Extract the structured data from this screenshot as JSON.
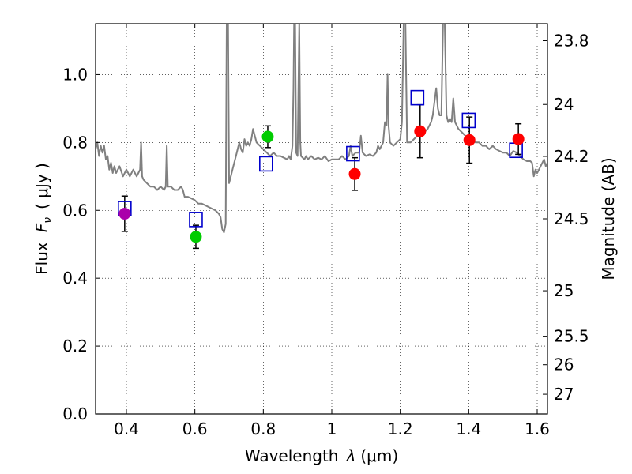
{
  "chart_data": {
    "type": "scatter",
    "xlabel": "Wavelength",
    "xlabel_symbol": "λ",
    "xlabel_unit": "(μm)",
    "ylabel": "Flux",
    "ylabel_symbol": "F",
    "ylabel_subscript": "ν",
    "ylabel_unit": "( μJy )",
    "y2label": "Magnitude (AB)",
    "xlim": [
      0.31,
      1.63
    ],
    "ylim": [
      0.0,
      1.15
    ],
    "grid": true,
    "x_ticks": [
      {
        "value": 0.4,
        "label": "0.4"
      },
      {
        "value": 0.6,
        "label": "0.6"
      },
      {
        "value": 0.8,
        "label": "0.8"
      },
      {
        "value": 1.0,
        "label": "1"
      },
      {
        "value": 1.2,
        "label": "1.2"
      },
      {
        "value": 1.4,
        "label": "1.4"
      },
      {
        "value": 1.6,
        "label": "1.6"
      }
    ],
    "y_ticks": [
      {
        "value": 0.0,
        "label": "0.0"
      },
      {
        "value": 0.2,
        "label": "0.2"
      },
      {
        "value": 0.4,
        "label": "0.4"
      },
      {
        "value": 0.6,
        "label": "0.6"
      },
      {
        "value": 0.8,
        "label": "0.8"
      },
      {
        "value": 1.0,
        "label": "1.0"
      }
    ],
    "y2_ticks": [
      {
        "flux": 1.1,
        "label": "23.8"
      },
      {
        "flux": 0.912,
        "label": "24"
      },
      {
        "flux": 0.759,
        "label": "24.2"
      },
      {
        "flux": 0.575,
        "label": "24.5"
      },
      {
        "flux": 0.363,
        "label": "25"
      },
      {
        "flux": 0.229,
        "label": "25.5"
      },
      {
        "flux": 0.145,
        "label": "26"
      },
      {
        "flux": 0.058,
        "label": "27"
      }
    ],
    "colors": {
      "sed": "#808080",
      "model": "#0000cc",
      "errorbar": "#000000",
      "purple": "#aa00aa",
      "green": "#00cc00",
      "red": "#ff0000"
    },
    "model_points": [
      {
        "x": 0.395,
        "y": 0.605
      },
      {
        "x": 0.603,
        "y": 0.573
      },
      {
        "x": 0.808,
        "y": 0.737
      },
      {
        "x": 1.062,
        "y": 0.767
      },
      {
        "x": 1.25,
        "y": 0.932
      },
      {
        "x": 1.4,
        "y": 0.865
      },
      {
        "x": 1.538,
        "y": 0.777
      }
    ],
    "observed_points": [
      {
        "x": 0.395,
        "y": 0.59,
        "yerr": 0.052,
        "color": "purple"
      },
      {
        "x": 0.603,
        "y": 0.522,
        "yerr": 0.034,
        "color": "green"
      },
      {
        "x": 0.813,
        "y": 0.817,
        "yerr": 0.032,
        "color": "green"
      },
      {
        "x": 1.067,
        "y": 0.707,
        "yerr": 0.048,
        "color": "red"
      },
      {
        "x": 1.258,
        "y": 0.833,
        "yerr": 0.078,
        "color": "red"
      },
      {
        "x": 1.402,
        "y": 0.807,
        "yerr": 0.068,
        "color": "red"
      },
      {
        "x": 1.545,
        "y": 0.81,
        "yerr": 0.045,
        "color": "red"
      }
    ],
    "sed_curve": [
      [
        0.31,
        0.78
      ],
      [
        0.315,
        0.8
      ],
      [
        0.32,
        0.76
      ],
      [
        0.325,
        0.79
      ],
      [
        0.33,
        0.77
      ],
      [
        0.335,
        0.79
      ],
      [
        0.34,
        0.75
      ],
      [
        0.345,
        0.76
      ],
      [
        0.35,
        0.72
      ],
      [
        0.355,
        0.74
      ],
      [
        0.36,
        0.71
      ],
      [
        0.365,
        0.73
      ],
      [
        0.37,
        0.71
      ],
      [
        0.38,
        0.73
      ],
      [
        0.39,
        0.7
      ],
      [
        0.4,
        0.72
      ],
      [
        0.41,
        0.7
      ],
      [
        0.42,
        0.72
      ],
      [
        0.425,
        0.71
      ],
      [
        0.43,
        0.7
      ],
      [
        0.435,
        0.71
      ],
      [
        0.44,
        0.72
      ],
      [
        0.443,
        0.8
      ],
      [
        0.446,
        0.7
      ],
      [
        0.45,
        0.69
      ],
      [
        0.46,
        0.68
      ],
      [
        0.47,
        0.67
      ],
      [
        0.48,
        0.67
      ],
      [
        0.49,
        0.66
      ],
      [
        0.5,
        0.67
      ],
      [
        0.51,
        0.66
      ],
      [
        0.515,
        0.67
      ],
      [
        0.518,
        0.79
      ],
      [
        0.521,
        0.67
      ],
      [
        0.53,
        0.67
      ],
      [
        0.54,
        0.66
      ],
      [
        0.55,
        0.66
      ],
      [
        0.56,
        0.67
      ],
      [
        0.565,
        0.66
      ],
      [
        0.57,
        0.64
      ],
      [
        0.58,
        0.64
      ],
      [
        0.59,
        0.635
      ],
      [
        0.6,
        0.63
      ],
      [
        0.61,
        0.62
      ],
      [
        0.62,
        0.62
      ],
      [
        0.63,
        0.615
      ],
      [
        0.64,
        0.61
      ],
      [
        0.65,
        0.605
      ],
      [
        0.66,
        0.6
      ],
      [
        0.67,
        0.59
      ],
      [
        0.675,
        0.58
      ],
      [
        0.68,
        0.545
      ],
      [
        0.685,
        0.535
      ],
      [
        0.69,
        0.56
      ],
      [
        0.693,
        1.15
      ],
      [
        0.697,
        1.15
      ],
      [
        0.7,
        0.68
      ],
      [
        0.705,
        0.7
      ],
      [
        0.71,
        0.72
      ],
      [
        0.715,
        0.74
      ],
      [
        0.72,
        0.76
      ],
      [
        0.725,
        0.78
      ],
      [
        0.73,
        0.8
      ],
      [
        0.735,
        0.78
      ],
      [
        0.74,
        0.77
      ],
      [
        0.745,
        0.81
      ],
      [
        0.75,
        0.79
      ],
      [
        0.755,
        0.8
      ],
      [
        0.76,
        0.79
      ],
      [
        0.765,
        0.81
      ],
      [
        0.77,
        0.84
      ],
      [
        0.775,
        0.82
      ],
      [
        0.78,
        0.8
      ],
      [
        0.79,
        0.79
      ],
      [
        0.8,
        0.78
      ],
      [
        0.81,
        0.77
      ],
      [
        0.82,
        0.76
      ],
      [
        0.83,
        0.77
      ],
      [
        0.84,
        0.76
      ],
      [
        0.85,
        0.76
      ],
      [
        0.86,
        0.755
      ],
      [
        0.87,
        0.75
      ],
      [
        0.875,
        0.76
      ],
      [
        0.88,
        0.75
      ],
      [
        0.885,
        0.79
      ],
      [
        0.888,
        0.96
      ],
      [
        0.89,
        1.15
      ],
      [
        0.893,
        1.15
      ],
      [
        0.896,
        0.77
      ],
      [
        0.9,
        0.76
      ],
      [
        0.905,
        1.15
      ],
      [
        0.908,
        0.8
      ],
      [
        0.91,
        0.76
      ],
      [
        0.92,
        0.75
      ],
      [
        0.925,
        0.76
      ],
      [
        0.93,
        0.75
      ],
      [
        0.94,
        0.76
      ],
      [
        0.95,
        0.75
      ],
      [
        0.96,
        0.755
      ],
      [
        0.97,
        0.75
      ],
      [
        0.98,
        0.76
      ],
      [
        0.99,
        0.745
      ],
      [
        1.0,
        0.75
      ],
      [
        1.01,
        0.75
      ],
      [
        1.02,
        0.75
      ],
      [
        1.03,
        0.76
      ],
      [
        1.04,
        0.75
      ],
      [
        1.05,
        0.76
      ],
      [
        1.055,
        0.79
      ],
      [
        1.06,
        0.76
      ],
      [
        1.07,
        0.77
      ],
      [
        1.08,
        0.77
      ],
      [
        1.085,
        0.82
      ],
      [
        1.09,
        0.77
      ],
      [
        1.1,
        0.76
      ],
      [
        1.11,
        0.765
      ],
      [
        1.12,
        0.76
      ],
      [
        1.13,
        0.77
      ],
      [
        1.135,
        0.79
      ],
      [
        1.14,
        0.78
      ],
      [
        1.15,
        0.8
      ],
      [
        1.155,
        0.86
      ],
      [
        1.16,
        0.85
      ],
      [
        1.163,
        1.0
      ],
      [
        1.166,
        0.85
      ],
      [
        1.17,
        0.8
      ],
      [
        1.18,
        0.79
      ],
      [
        1.19,
        0.8
      ],
      [
        1.2,
        0.81
      ],
      [
        1.205,
        0.86
      ],
      [
        1.21,
        1.15
      ],
      [
        1.215,
        1.15
      ],
      [
        1.22,
        0.8
      ],
      [
        1.23,
        0.8
      ],
      [
        1.24,
        0.81
      ],
      [
        1.25,
        0.82
      ],
      [
        1.26,
        0.82
      ],
      [
        1.27,
        0.83
      ],
      [
        1.28,
        0.84
      ],
      [
        1.29,
        0.86
      ],
      [
        1.295,
        0.88
      ],
      [
        1.3,
        0.92
      ],
      [
        1.305,
        0.96
      ],
      [
        1.31,
        0.9
      ],
      [
        1.315,
        0.88
      ],
      [
        1.32,
        0.88
      ],
      [
        1.325,
        1.15
      ],
      [
        1.33,
        1.15
      ],
      [
        1.335,
        0.88
      ],
      [
        1.34,
        0.86
      ],
      [
        1.345,
        0.87
      ],
      [
        1.35,
        0.86
      ],
      [
        1.355,
        0.93
      ],
      [
        1.36,
        0.86
      ],
      [
        1.37,
        0.84
      ],
      [
        1.38,
        0.83
      ],
      [
        1.39,
        0.82
      ],
      [
        1.4,
        0.81
      ],
      [
        1.41,
        0.81
      ],
      [
        1.42,
        0.8
      ],
      [
        1.43,
        0.8
      ],
      [
        1.44,
        0.79
      ],
      [
        1.45,
        0.79
      ],
      [
        1.46,
        0.78
      ],
      [
        1.47,
        0.79
      ],
      [
        1.48,
        0.78
      ],
      [
        1.49,
        0.775
      ],
      [
        1.5,
        0.77
      ],
      [
        1.51,
        0.77
      ],
      [
        1.52,
        0.76
      ],
      [
        1.53,
        0.775
      ],
      [
        1.54,
        0.77
      ],
      [
        1.55,
        0.76
      ],
      [
        1.56,
        0.75
      ],
      [
        1.57,
        0.745
      ],
      [
        1.58,
        0.745
      ],
      [
        1.585,
        0.74
      ],
      [
        1.59,
        0.7
      ],
      [
        1.595,
        0.72
      ],
      [
        1.6,
        0.71
      ],
      [
        1.605,
        0.72
      ],
      [
        1.61,
        0.73
      ],
      [
        1.615,
        0.74
      ],
      [
        1.62,
        0.75
      ],
      [
        1.625,
        0.73
      ],
      [
        1.63,
        0.74
      ]
    ]
  }
}
